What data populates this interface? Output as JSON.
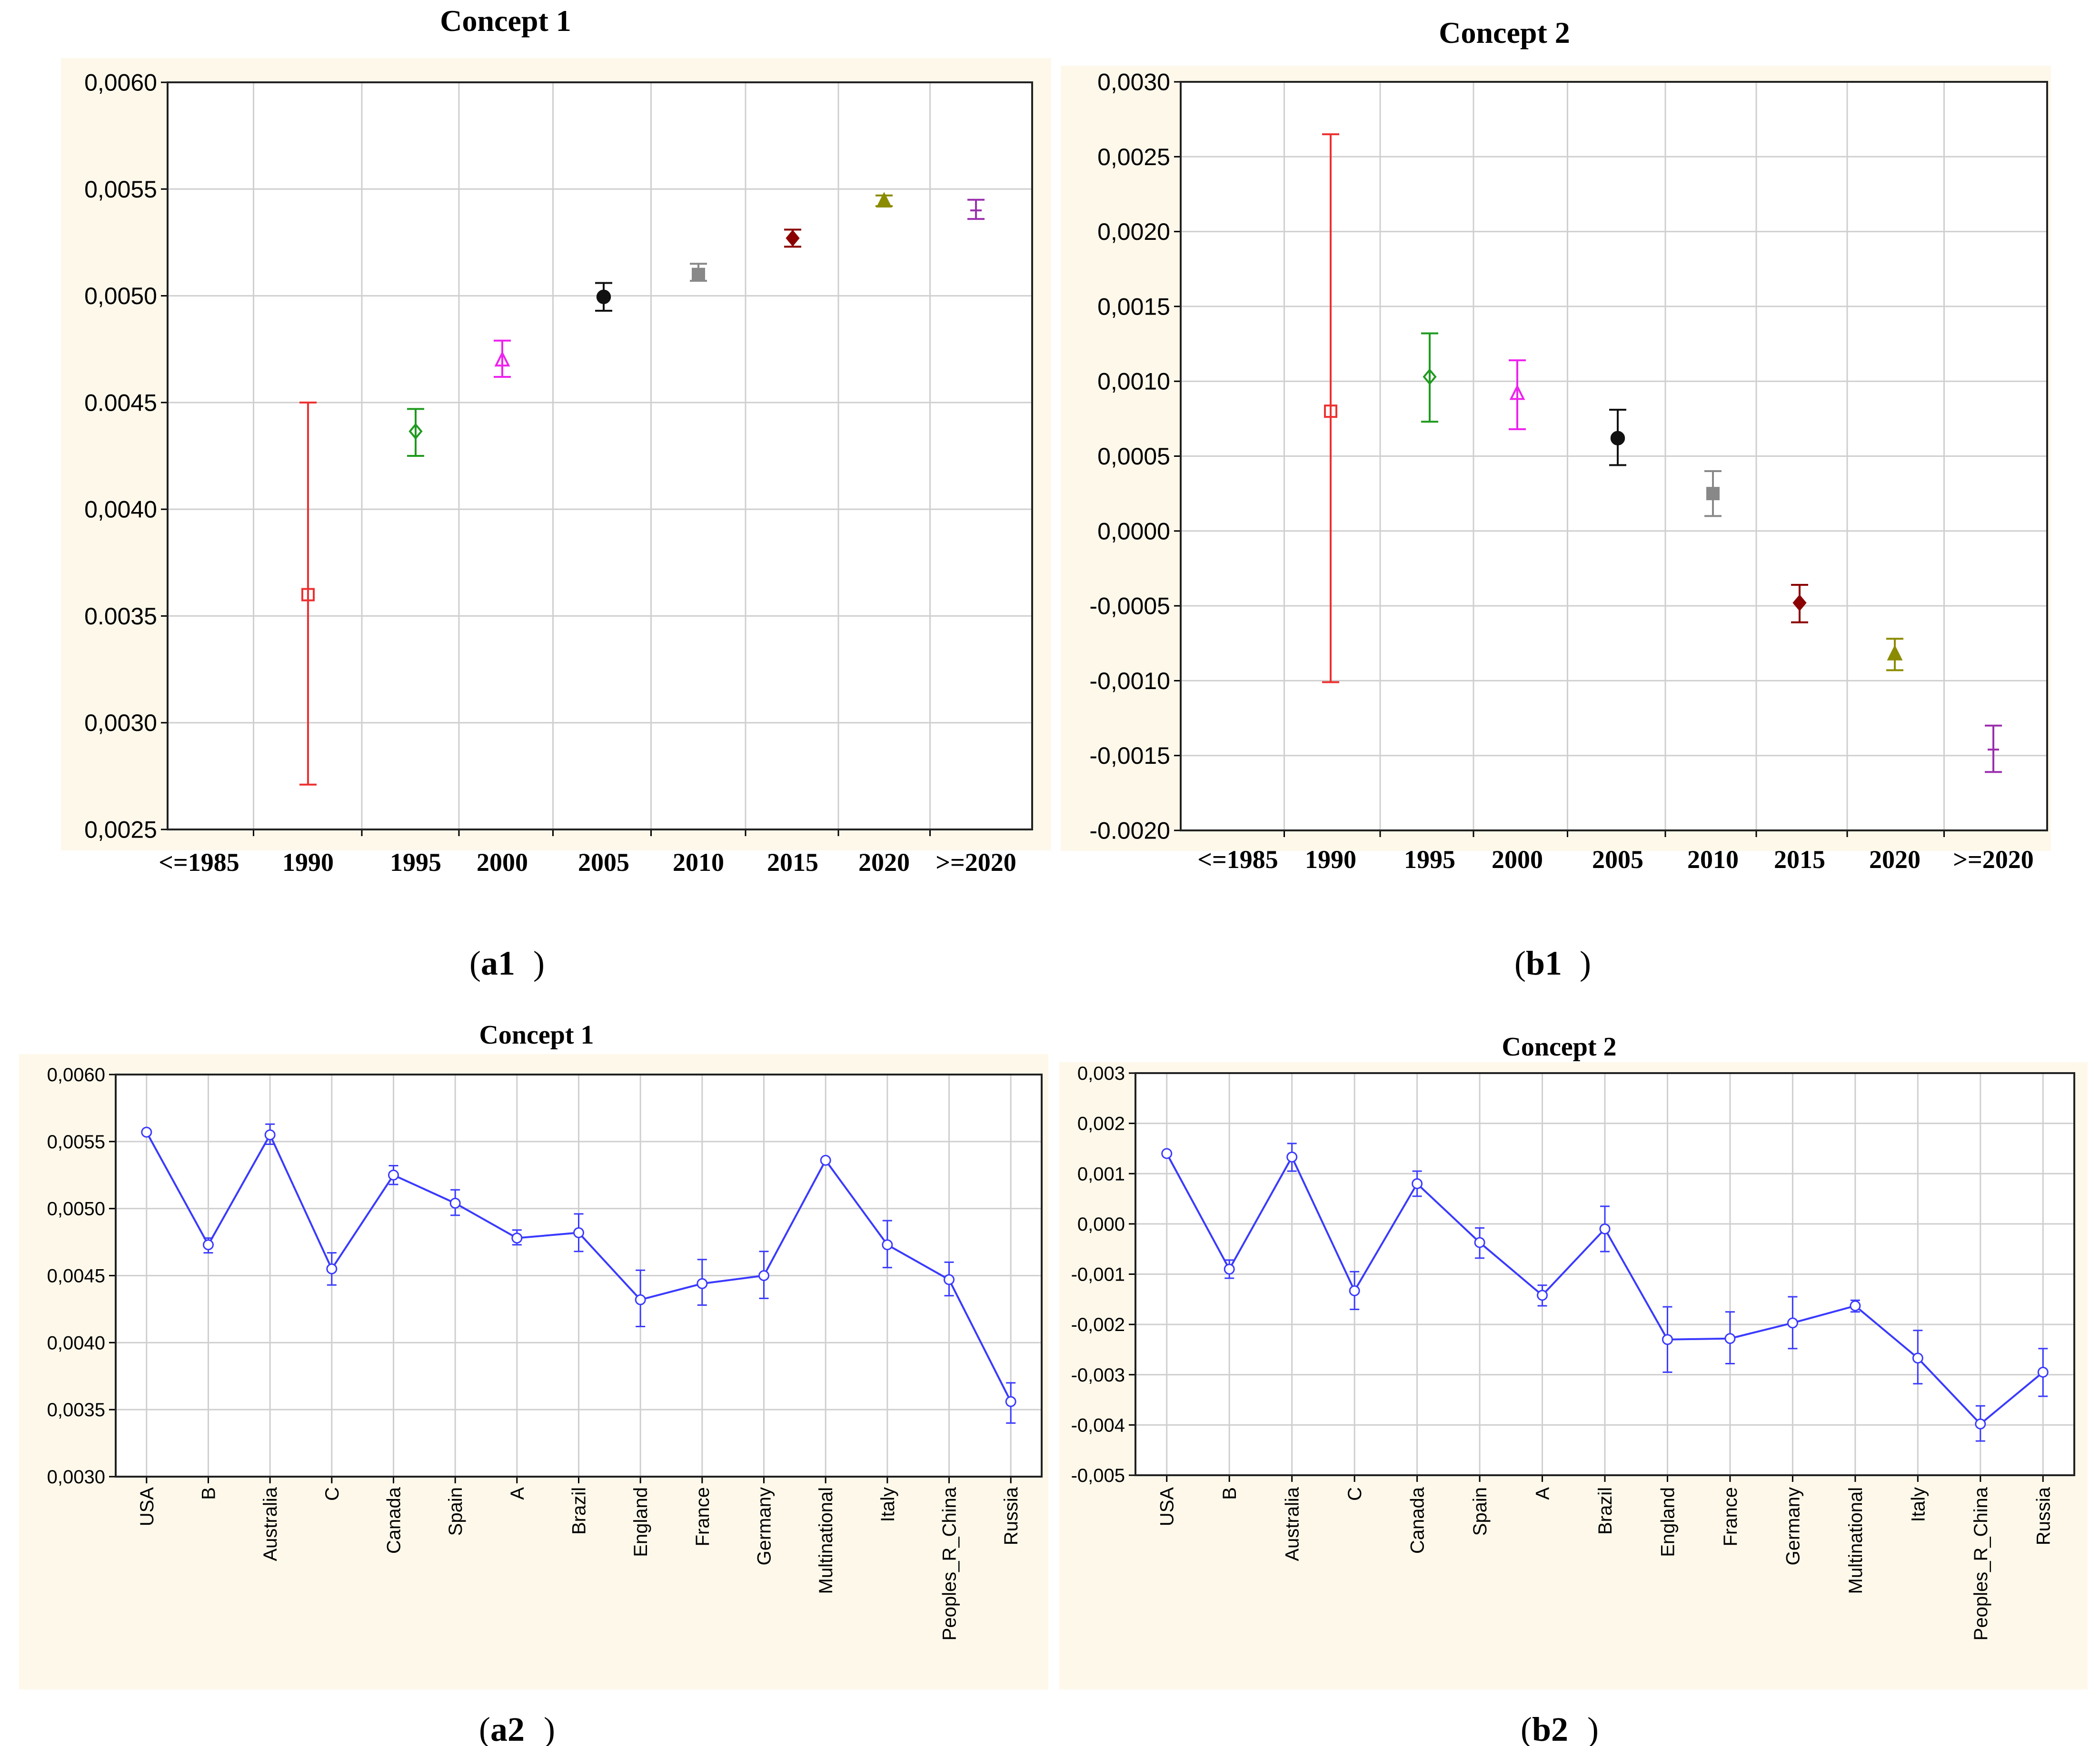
{
  "panels": [
    {
      "id": "a1",
      "caption": "a1",
      "title": "Concept 1",
      "type": "errorbar",
      "categories": [
        "<=1985",
        "1990",
        "1995",
        "2000",
        "2005",
        "2010",
        "2015",
        "2020",
        ">=2020"
      ],
      "ylim": [
        0.0025,
        0.006
      ],
      "yticks": [
        0.0025,
        0.003,
        0.0035,
        0.004,
        0.0045,
        0.005,
        0.0055,
        0.006
      ],
      "ytick_labels": [
        "0,0025",
        "0,0030",
        "0.0035",
        "0,0040",
        "0.0045",
        "0,0050",
        "0,0055",
        "0,0060"
      ],
      "points": [
        {
          "cat": "1990",
          "mean": 0.0036,
          "low": 0.00271,
          "high": 0.0045,
          "color": "#ee3030",
          "marker": "square-open"
        },
        {
          "cat": "1995",
          "mean": 0.004365,
          "low": 0.00425,
          "high": 0.00447,
          "color": "#1f9a1f",
          "marker": "diamond-open"
        },
        {
          "cat": "2000",
          "mean": 0.0047,
          "low": 0.00462,
          "high": 0.00479,
          "color": "#ee22ee",
          "marker": "triangle-open"
        },
        {
          "cat": "2005",
          "mean": 0.004995,
          "low": 0.00493,
          "high": 0.00506,
          "color": "#111111",
          "marker": "circle-filled"
        },
        {
          "cat": "2010",
          "mean": 0.0051,
          "low": 0.00507,
          "high": 0.00515,
          "color": "#888888",
          "marker": "square-filled"
        },
        {
          "cat": "2015",
          "mean": 0.00527,
          "low": 0.00523,
          "high": 0.00531,
          "color": "#8b0000",
          "marker": "diamond-filled"
        },
        {
          "cat": "2020",
          "mean": 0.005445,
          "low": 0.00542,
          "high": 0.00547,
          "color": "#8b8b00",
          "marker": "triangle-filled"
        },
        {
          "cat": ">=2020",
          "mean": 0.0054,
          "low": 0.00536,
          "high": 0.00545,
          "color": "#9b2fae",
          "marker": "plus"
        }
      ]
    },
    {
      "id": "b1",
      "caption": "b1",
      "title": "Concept 2",
      "type": "errorbar",
      "categories": [
        "<=1985",
        "1990",
        "1995",
        "2000",
        "2005",
        "2010",
        "2015",
        "2020",
        ">=2020"
      ],
      "ylim": [
        -0.002,
        0.003
      ],
      "yticks": [
        -0.002,
        -0.0015,
        -0.001,
        -0.0005,
        0,
        0.0005,
        0.001,
        0.0015,
        0.002,
        0.0025,
        0.003
      ],
      "ytick_labels": [
        "-0.0020",
        "-0,0015",
        "-0,0010",
        "-0,0005",
        "0,0000",
        "0,0005",
        "0,0010",
        "0,0015",
        "0,0020",
        "0,0025",
        "0,0030"
      ],
      "points": [
        {
          "cat": "1990",
          "mean": 0.0008,
          "low": -0.00101,
          "high": 0.00265,
          "color": "#ee3030",
          "marker": "square-open"
        },
        {
          "cat": "1995",
          "mean": 0.00103,
          "low": 0.00073,
          "high": 0.00132,
          "color": "#1f9a1f",
          "marker": "diamond-open"
        },
        {
          "cat": "2000",
          "mean": 0.00092,
          "low": 0.00068,
          "high": 0.00114,
          "color": "#ee22ee",
          "marker": "triangle-open"
        },
        {
          "cat": "2005",
          "mean": 0.00062,
          "low": 0.00044,
          "high": 0.00081,
          "color": "#111111",
          "marker": "circle-filled"
        },
        {
          "cat": "2010",
          "mean": 0.00025,
          "low": 0.0001,
          "high": 0.0004,
          "color": "#888888",
          "marker": "square-filled"
        },
        {
          "cat": "2015",
          "mean": -0.00048,
          "low": -0.00061,
          "high": -0.00036,
          "color": "#8b0000",
          "marker": "diamond-filled"
        },
        {
          "cat": "2020",
          "mean": -0.00082,
          "low": -0.00093,
          "high": -0.00072,
          "color": "#8b8b00",
          "marker": "triangle-filled"
        },
        {
          "cat": ">=2020",
          "mean": -0.00146,
          "low": -0.00161,
          "high": -0.0013,
          "color": "#9b2fae",
          "marker": "plus"
        }
      ]
    },
    {
      "id": "a2",
      "caption": "a2",
      "title": "Concept 1",
      "type": "line",
      "categories": [
        "USA",
        "B",
        "Australia",
        "C",
        "Canada",
        "Spain",
        "A",
        "Brazil",
        "England",
        "France",
        "Germany",
        "Multinational",
        "Italy",
        "Peoples_R_China",
        "Russia"
      ],
      "ylim": [
        0.003,
        0.006
      ],
      "yticks": [
        0.003,
        0.0035,
        0.004,
        0.0045,
        0.005,
        0.0055,
        0.006
      ],
      "ytick_labels": [
        "0,0030",
        "0,0035",
        "0,0040",
        "0,0045",
        "0,0050",
        "0,0055",
        "0,0060"
      ],
      "series": [
        {
          "name": "Concept 1",
          "color": "#3a3aff",
          "values": [
            0.00557,
            0.00473,
            0.00555,
            0.00455,
            0.00525,
            0.00504,
            0.00478,
            0.00482,
            0.00432,
            0.00444,
            0.0045,
            0.00536,
            0.00473,
            0.00447,
            0.00356
          ],
          "low": [
            0.00557,
            0.00467,
            0.00548,
            0.00443,
            0.00518,
            0.00495,
            0.00473,
            0.00468,
            0.00412,
            0.00428,
            0.00433,
            0.00536,
            0.00456,
            0.00435,
            0.0034
          ],
          "high": [
            0.00557,
            0.00478,
            0.00563,
            0.00467,
            0.00532,
            0.00514,
            0.00484,
            0.00496,
            0.00454,
            0.00462,
            0.00468,
            0.00536,
            0.00491,
            0.0046,
            0.0037
          ]
        }
      ]
    },
    {
      "id": "b2",
      "caption": "b2",
      "title": "Concept 2",
      "type": "line",
      "categories": [
        "USA",
        "B",
        "Australia",
        "C",
        "Canada",
        "Spain",
        "A",
        "Brazil",
        "England",
        "France",
        "Germany",
        "Multinational",
        "Italy",
        "Peoples_R_China",
        "Russia"
      ],
      "ylim": [
        -0.005,
        0.003
      ],
      "yticks": [
        -0.005,
        -0.004,
        -0.003,
        -0.002,
        -0.001,
        0,
        0.001,
        0.002,
        0.003
      ],
      "ytick_labels": [
        "-0,005",
        "-0,004",
        "-0,003",
        "-0,002",
        "-0,001",
        "0,000",
        "0,001",
        "0,002",
        "0,003"
      ],
      "series": [
        {
          "name": "Concept 2",
          "color": "#3a3aff",
          "values": [
            0.0014,
            -0.0009,
            0.00133,
            -0.00133,
            0.0008,
            -0.00037,
            -0.00142,
            -0.0001,
            -0.0023,
            -0.00228,
            -0.00197,
            -0.00163,
            -0.00267,
            -0.00398,
            -0.00295
          ],
          "low": [
            0.0014,
            -0.00108,
            0.00105,
            -0.0017,
            0.00055,
            -0.00068,
            -0.00163,
            -0.00055,
            -0.00295,
            -0.00278,
            -0.00248,
            -0.00175,
            -0.00318,
            -0.00432,
            -0.00343
          ],
          "high": [
            0.0014,
            -0.00072,
            0.0016,
            -0.00095,
            0.00105,
            -8e-05,
            -0.00122,
            0.00035,
            -0.00165,
            -0.00175,
            -0.00145,
            -0.00152,
            -0.00212,
            -0.00362,
            -0.00248
          ]
        }
      ]
    }
  ]
}
